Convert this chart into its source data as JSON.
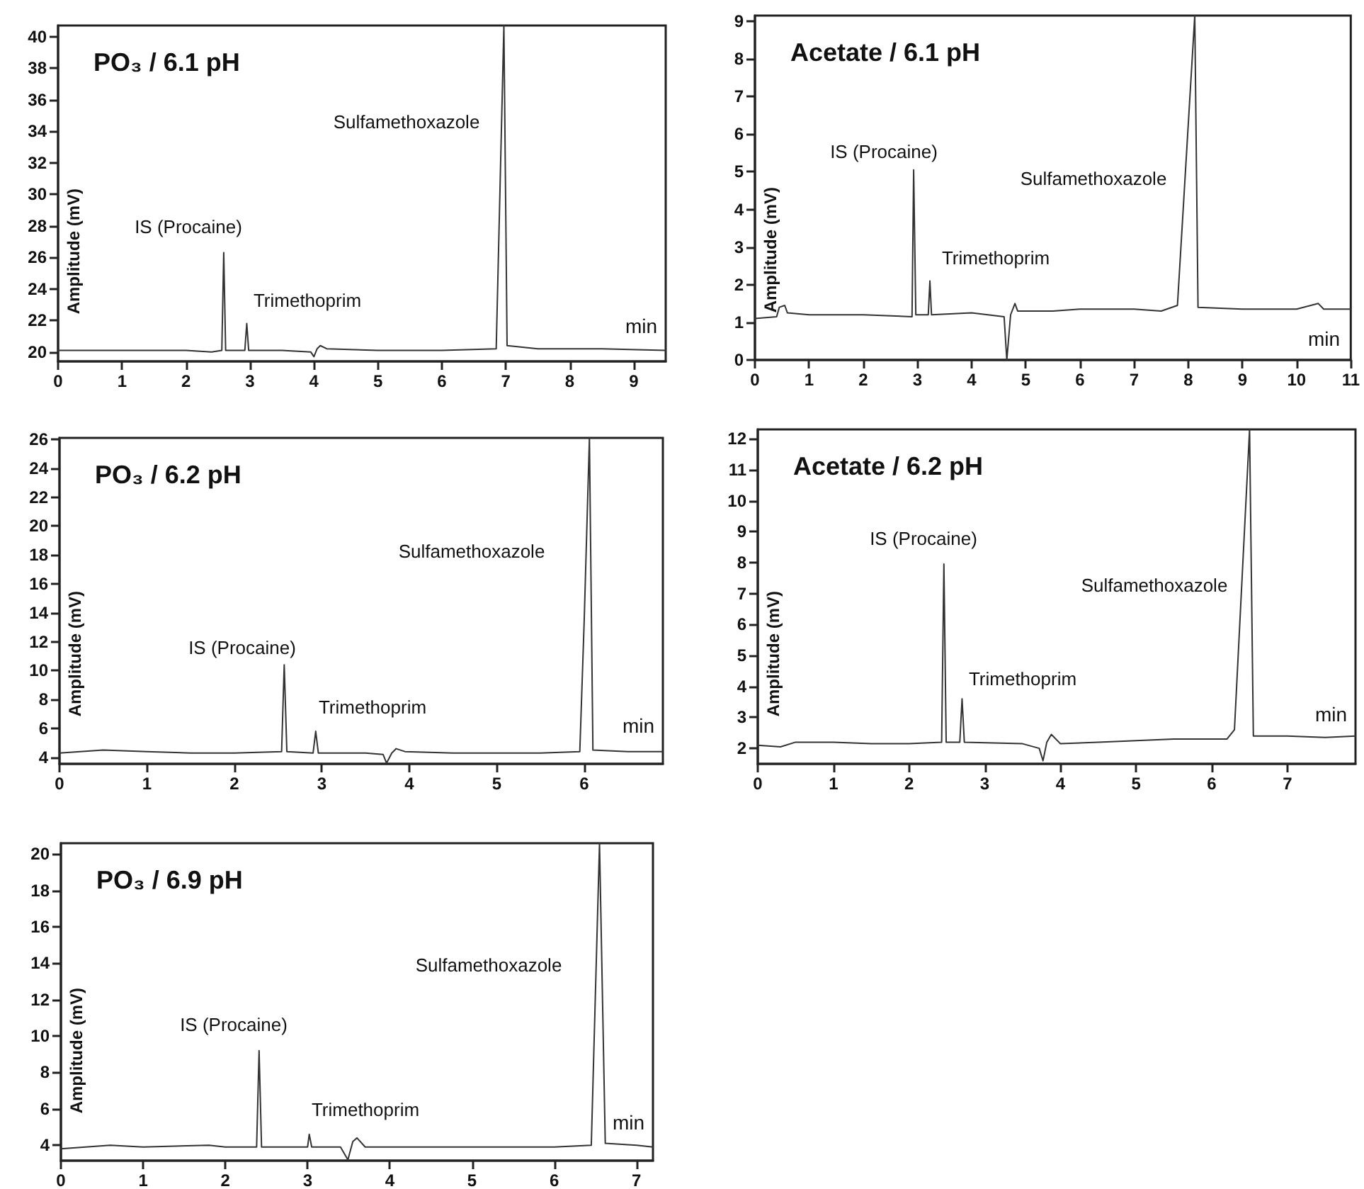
{
  "chart_data": [
    {
      "type": "line",
      "title": "PO₃ / 6.1 pH",
      "xlabel": "min",
      "ylabel": "Amplitude (mV)",
      "series": [
        {
          "color": "#333333",
          "x": [
            0,
            1,
            2,
            2.4,
            2.56,
            2.59,
            2.62,
            2.92,
            2.95,
            2.98,
            3.5,
            3.95,
            4.0,
            4.05,
            4.1,
            4.2,
            5,
            6,
            6.85,
            6.97,
            7.02,
            7.5,
            8.5,
            9.5
          ],
          "values": [
            20.1,
            20.1,
            20.1,
            20.0,
            20.1,
            26.3,
            20.1,
            20.1,
            21.8,
            20.1,
            20.1,
            20.0,
            19.7,
            20.2,
            20.4,
            20.2,
            20.1,
            20.1,
            20.2,
            40.7,
            20.4,
            20.2,
            20.2,
            20.1
          ]
        }
      ],
      "xlim": [
        0,
        9.5
      ],
      "xticks": [
        0,
        1,
        2,
        3,
        4,
        5,
        6,
        7,
        8,
        9
      ],
      "ylim": [
        19.4,
        40.7
      ],
      "yticks": [
        20,
        22,
        24,
        26,
        28,
        30,
        32,
        34,
        36,
        38,
        40
      ],
      "annotations": [
        "IS (Procaine)",
        "Trimethoprim",
        "Sulfamethoxazole"
      ]
    },
    {
      "type": "line",
      "title": "Acetate / 6.1 pH",
      "xlabel": "min",
      "ylabel": "Amplitude (mV)",
      "series": [
        {
          "color": "#333333",
          "x": [
            0,
            0.4,
            0.45,
            0.55,
            0.6,
            1,
            2,
            2.9,
            2.93,
            2.97,
            3.2,
            3.23,
            3.26,
            4,
            4.6,
            4.65,
            4.72,
            4.8,
            4.85,
            5.5,
            6,
            7,
            7.5,
            7.8,
            8.12,
            8.18,
            9,
            10,
            10.4,
            10.5,
            11
          ],
          "values": [
            1.1,
            1.15,
            1.4,
            1.45,
            1.25,
            1.2,
            1.2,
            1.15,
            5.05,
            1.2,
            1.2,
            2.1,
            1.2,
            1.25,
            1.15,
            0,
            1.2,
            1.5,
            1.3,
            1.3,
            1.35,
            1.35,
            1.3,
            1.45,
            9.15,
            1.4,
            1.35,
            1.35,
            1.5,
            1.35,
            1.35
          ]
        }
      ],
      "xlim": [
        0,
        11
      ],
      "xticks": [
        0,
        1,
        2,
        3,
        4,
        5,
        6,
        7,
        8,
        9,
        10,
        11
      ],
      "ylim": [
        0,
        9.15
      ],
      "yticks": [
        0,
        1,
        2,
        3,
        4,
        5,
        6,
        7,
        8,
        9
      ],
      "annotations": [
        "IS (Procaine)",
        "Trimethoprim",
        "Sulfamethoxazole"
      ]
    },
    {
      "type": "line",
      "title": "PO₃ / 6.2 pH",
      "xlabel": "min",
      "ylabel": "Amplitude (mV)",
      "series": [
        {
          "color": "#333333",
          "x": [
            0,
            0.5,
            1,
            1.5,
            2,
            2.54,
            2.57,
            2.6,
            2.9,
            2.93,
            2.96,
            3.5,
            3.7,
            3.74,
            3.8,
            3.85,
            3.95,
            4.5,
            5,
            5.5,
            5.95,
            6.0,
            6.06,
            6.1,
            6.5,
            6.9
          ],
          "values": [
            4.3,
            4.5,
            4.4,
            4.3,
            4.3,
            4.4,
            10.4,
            4.4,
            4.3,
            5.8,
            4.3,
            4.3,
            4.2,
            3.6,
            4.3,
            4.6,
            4.4,
            4.3,
            4.3,
            4.3,
            4.4,
            13.4,
            26.1,
            4.5,
            4.4,
            4.4
          ]
        }
      ],
      "xlim": [
        0,
        6.9
      ],
      "xticks": [
        0,
        1,
        2,
        3,
        4,
        5,
        6
      ],
      "ylim": [
        3.55,
        26.1
      ],
      "yticks": [
        4,
        6,
        8,
        10,
        12,
        14,
        16,
        18,
        20,
        22,
        24,
        26
      ],
      "annotations": [
        "IS (Procaine)",
        "Trimethoprim",
        "Sulfamethoxazole"
      ]
    },
    {
      "type": "line",
      "title": "Acetate / 6.2 pH",
      "xlabel": "min",
      "ylabel": "Amplitude (mV)",
      "series": [
        {
          "color": "#333333",
          "x": [
            0,
            0.3,
            0.5,
            1,
            1.5,
            2,
            2.43,
            2.46,
            2.49,
            2.67,
            2.7,
            2.73,
            3.5,
            3.72,
            3.77,
            3.82,
            3.88,
            4.0,
            4.5,
            5,
            5.5,
            6.2,
            6.3,
            6.5,
            6.55,
            7,
            7.5,
            7.9
          ],
          "values": [
            2.1,
            2.05,
            2.2,
            2.2,
            2.15,
            2.15,
            2.2,
            7.95,
            2.2,
            2.2,
            3.6,
            2.2,
            2.15,
            2.0,
            1.6,
            2.2,
            2.45,
            2.15,
            2.2,
            2.25,
            2.3,
            2.3,
            2.6,
            12.3,
            2.4,
            2.4,
            2.35,
            2.4
          ]
        }
      ],
      "xlim": [
        0,
        7.9
      ],
      "xticks": [
        0,
        1,
        2,
        3,
        4,
        5,
        6,
        7
      ],
      "ylim": [
        1.5,
        12.3
      ],
      "yticks": [
        2,
        3,
        4,
        5,
        6,
        7,
        8,
        9,
        10,
        11,
        12
      ],
      "annotations": [
        "IS (Procaine)",
        "Trimethoprim",
        "Sulfamethoxazole"
      ]
    },
    {
      "type": "line",
      "title": "PO₃ / 6.9 pH",
      "xlabel": "min",
      "ylabel": "Amplitude (mV)",
      "series": [
        {
          "color": "#333333",
          "x": [
            0,
            0.6,
            1,
            1.8,
            2,
            2.38,
            2.41,
            2.44,
            3.0,
            3.02,
            3.05,
            3.4,
            3.49,
            3.55,
            3.6,
            3.7,
            4,
            5,
            5.5,
            6,
            6.45,
            6.55,
            6.62,
            7,
            7.2
          ],
          "values": [
            3.8,
            4.0,
            3.9,
            4.0,
            3.9,
            3.9,
            9.2,
            3.9,
            3.9,
            4.6,
            3.9,
            3.9,
            3.2,
            4.2,
            4.4,
            3.9,
            3.9,
            3.9,
            3.9,
            3.9,
            4.0,
            20.6,
            4.1,
            4.0,
            3.9
          ]
        }
      ],
      "xlim": [
        0,
        7.2
      ],
      "xticks": [
        0,
        1,
        2,
        3,
        4,
        5,
        6,
        7
      ],
      "ylim": [
        3.15,
        20.6
      ],
      "yticks": [
        4,
        6,
        8,
        10,
        12,
        14,
        16,
        18,
        20
      ],
      "annotations": [
        "IS (Procaine)",
        "Trimethoprim",
        "Sulfamethoxazole"
      ]
    }
  ]
}
